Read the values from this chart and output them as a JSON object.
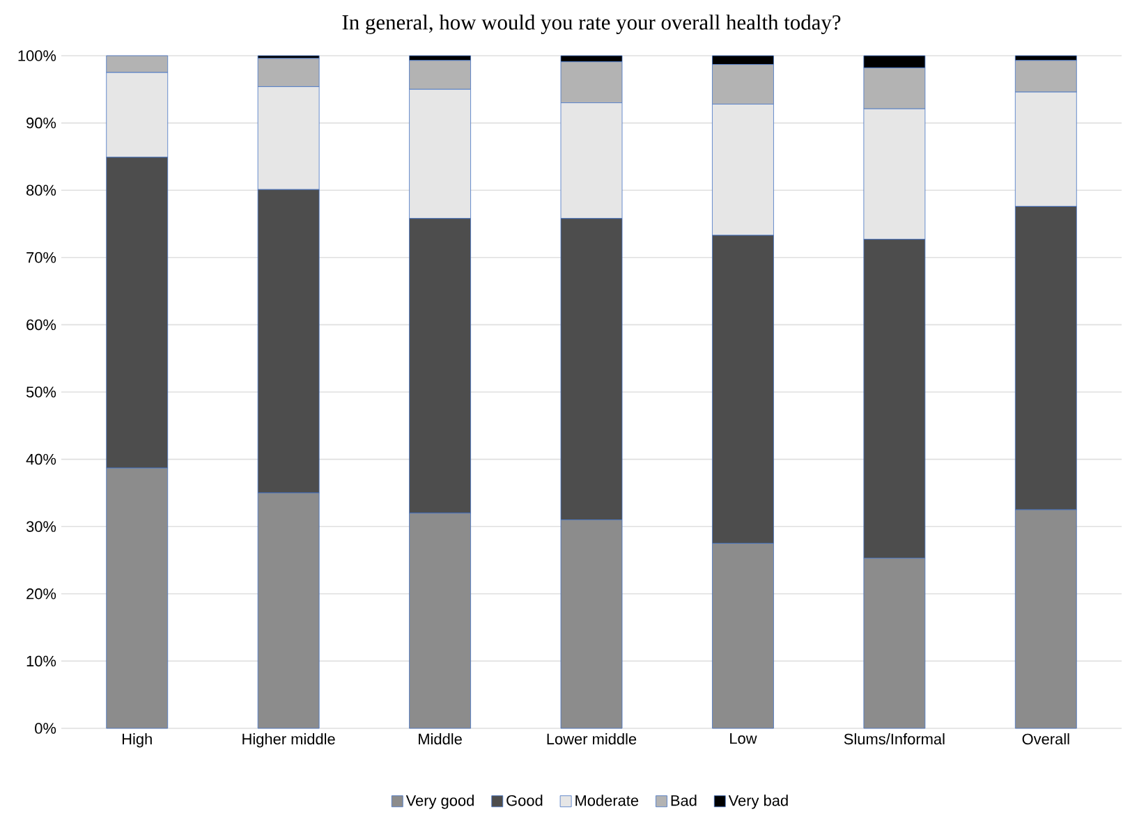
{
  "chart_data": {
    "type": "bar",
    "stacked": true,
    "title": "In general, how would you rate your overall health today?",
    "categories": [
      "High",
      "Higher middle",
      "Middle",
      "Lower middle",
      "Low",
      "Slums/Informal",
      "Overall"
    ],
    "series": [
      {
        "name": "Very good",
        "color": "#8c8c8c",
        "values": [
          38.7,
          35.0,
          32.0,
          31.0,
          27.5,
          25.3,
          32.5
        ]
      },
      {
        "name": "Good",
        "color": "#4d4d4d",
        "values": [
          46.2,
          45.1,
          43.8,
          44.8,
          45.8,
          47.4,
          45.1
        ]
      },
      {
        "name": "Moderate",
        "color": "#e6e6e6",
        "values": [
          12.6,
          15.3,
          19.2,
          17.2,
          19.5,
          19.4,
          17.0
        ]
      },
      {
        "name": "Bad",
        "color": "#b3b3b3",
        "values": [
          2.5,
          4.2,
          4.3,
          6.1,
          5.9,
          6.1,
          4.7
        ]
      },
      {
        "name": "Very bad",
        "color": "#000000",
        "values": [
          0,
          0.4,
          0.7,
          0.9,
          1.3,
          1.8,
          0.7
        ]
      }
    ],
    "ylim": [
      0,
      100
    ],
    "yticks": [
      {
        "value": 0,
        "label": "0%"
      },
      {
        "value": 10,
        "label": "10%"
      },
      {
        "value": 20,
        "label": "20%"
      },
      {
        "value": 30,
        "label": "30%"
      },
      {
        "value": 40,
        "label": "40%"
      },
      {
        "value": 50,
        "label": "50%"
      },
      {
        "value": 60,
        "label": "60%"
      },
      {
        "value": 70,
        "label": "70%"
      },
      {
        "value": 80,
        "label": "80%"
      },
      {
        "value": 90,
        "label": "90%"
      },
      {
        "value": 100,
        "label": "100%"
      }
    ],
    "grid": "y",
    "legend": "bottom"
  }
}
